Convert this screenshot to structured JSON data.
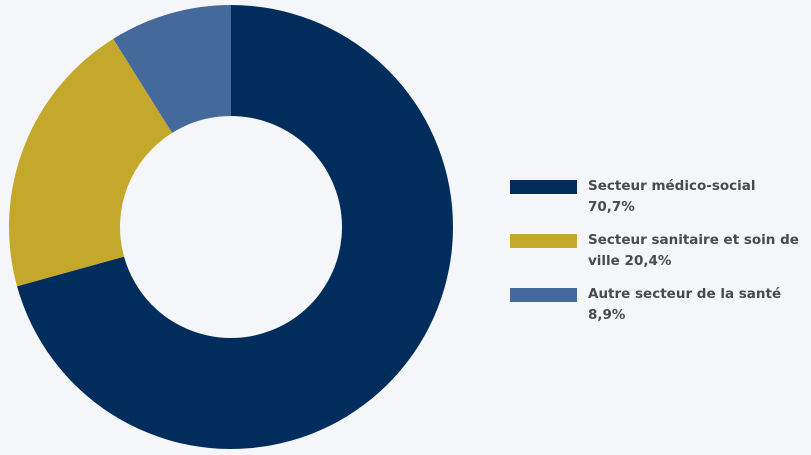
{
  "chart_data": {
    "type": "donut",
    "title": "",
    "series": [
      {
        "name": "Secteur médico-social",
        "value": 70.7,
        "value_label": "70,7%",
        "color": "#002d5c"
      },
      {
        "name": "Secteur sanitaire et soin de ville",
        "value": 20.4,
        "value_label": "20,4%",
        "color": "#c4a82b"
      },
      {
        "name": "Autre secteur de la santé",
        "value": 8.9,
        "value_label": "8,9%",
        "color": "#44699b"
      }
    ],
    "start_angle_deg": 0,
    "direction": "clockwise",
    "legend_position": "right"
  },
  "colors": {
    "background": "#f4f6fa",
    "legend_text": "#4a4a4a"
  }
}
